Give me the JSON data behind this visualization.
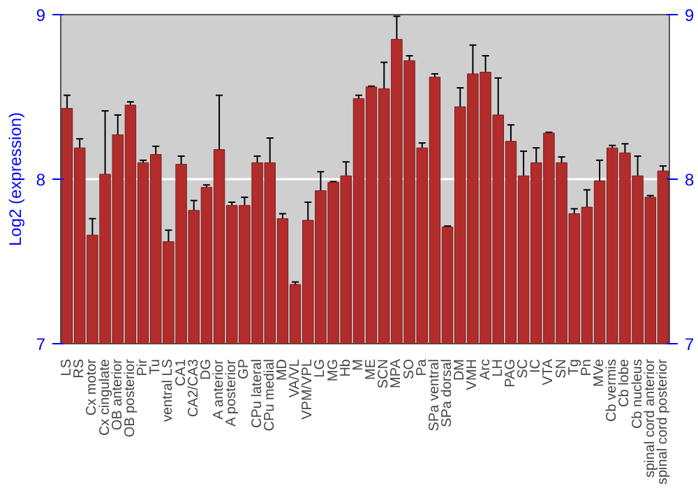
{
  "chart_data": {
    "type": "bar",
    "ylabel": "Log2 (expression)",
    "categories": [
      "LS",
      "RS",
      "Cx motor",
      "Cx cingulate",
      "OB anterior",
      "OB posterior",
      "Pir",
      "Tu",
      "ventral LS",
      "CA1",
      "CA2/CA3",
      "DG",
      "A anterior",
      "A posterior",
      "GP",
      "CPu lateral",
      "CPu medial",
      "MD",
      "VA/VL",
      "VPM/VPL",
      "LG",
      "MG",
      "Hb",
      "M",
      "ME",
      "SCN",
      "MPA",
      "SO",
      "Pa",
      "SPa ventral",
      "SPa dorsal",
      "DM",
      "VMH",
      "Arc",
      "LH",
      "PAG",
      "SC",
      "IC",
      "VTA",
      "SN",
      "Tg",
      "Pn",
      "MVe",
      "Cb vermis",
      "Cb lobe",
      "Cb nucleus",
      "spinal cord anterior",
      "spinal cord posterior"
    ],
    "values": [
      8.43,
      8.19,
      7.66,
      8.03,
      8.27,
      8.45,
      8.1,
      8.15,
      7.62,
      8.09,
      7.81,
      7.95,
      8.18,
      7.84,
      7.84,
      8.1,
      8.1,
      7.76,
      7.36,
      7.75,
      7.93,
      7.98,
      8.02,
      8.49,
      8.56,
      8.55,
      8.85,
      8.72,
      8.19,
      8.62,
      7.71,
      8.44,
      8.64,
      8.65,
      8.39,
      8.23,
      8.02,
      8.1,
      8.28,
      8.1,
      7.79,
      7.83,
      7.99,
      8.19,
      8.16,
      8.02,
      7.89,
      8.05
    ],
    "errors": [
      0.08,
      0.055,
      0.1,
      0.385,
      0.12,
      0.02,
      0.015,
      0.05,
      0.07,
      0.05,
      0.06,
      0.015,
      0.33,
      0.02,
      0.05,
      0.04,
      0.15,
      0.03,
      0.015,
      0.11,
      0.115,
      0.005,
      0.085,
      0.02,
      0.005,
      0.16,
      0.14,
      0.03,
      0.03,
      0.02,
      0.005,
      0.115,
      0.175,
      0.1,
      0.225,
      0.1,
      0.15,
      0.09,
      0.005,
      0.035,
      0.03,
      0.105,
      0.125,
      0.015,
      0.055,
      0.12,
      0.01,
      0.03
    ],
    "color": "#b32c2c",
    "ylim": [
      7,
      9
    ],
    "yticks": [
      7,
      8,
      9
    ],
    "y2lim": [
      7,
      9
    ],
    "y2ticks": [
      7,
      8,
      9
    ],
    "grid": "y"
  }
}
